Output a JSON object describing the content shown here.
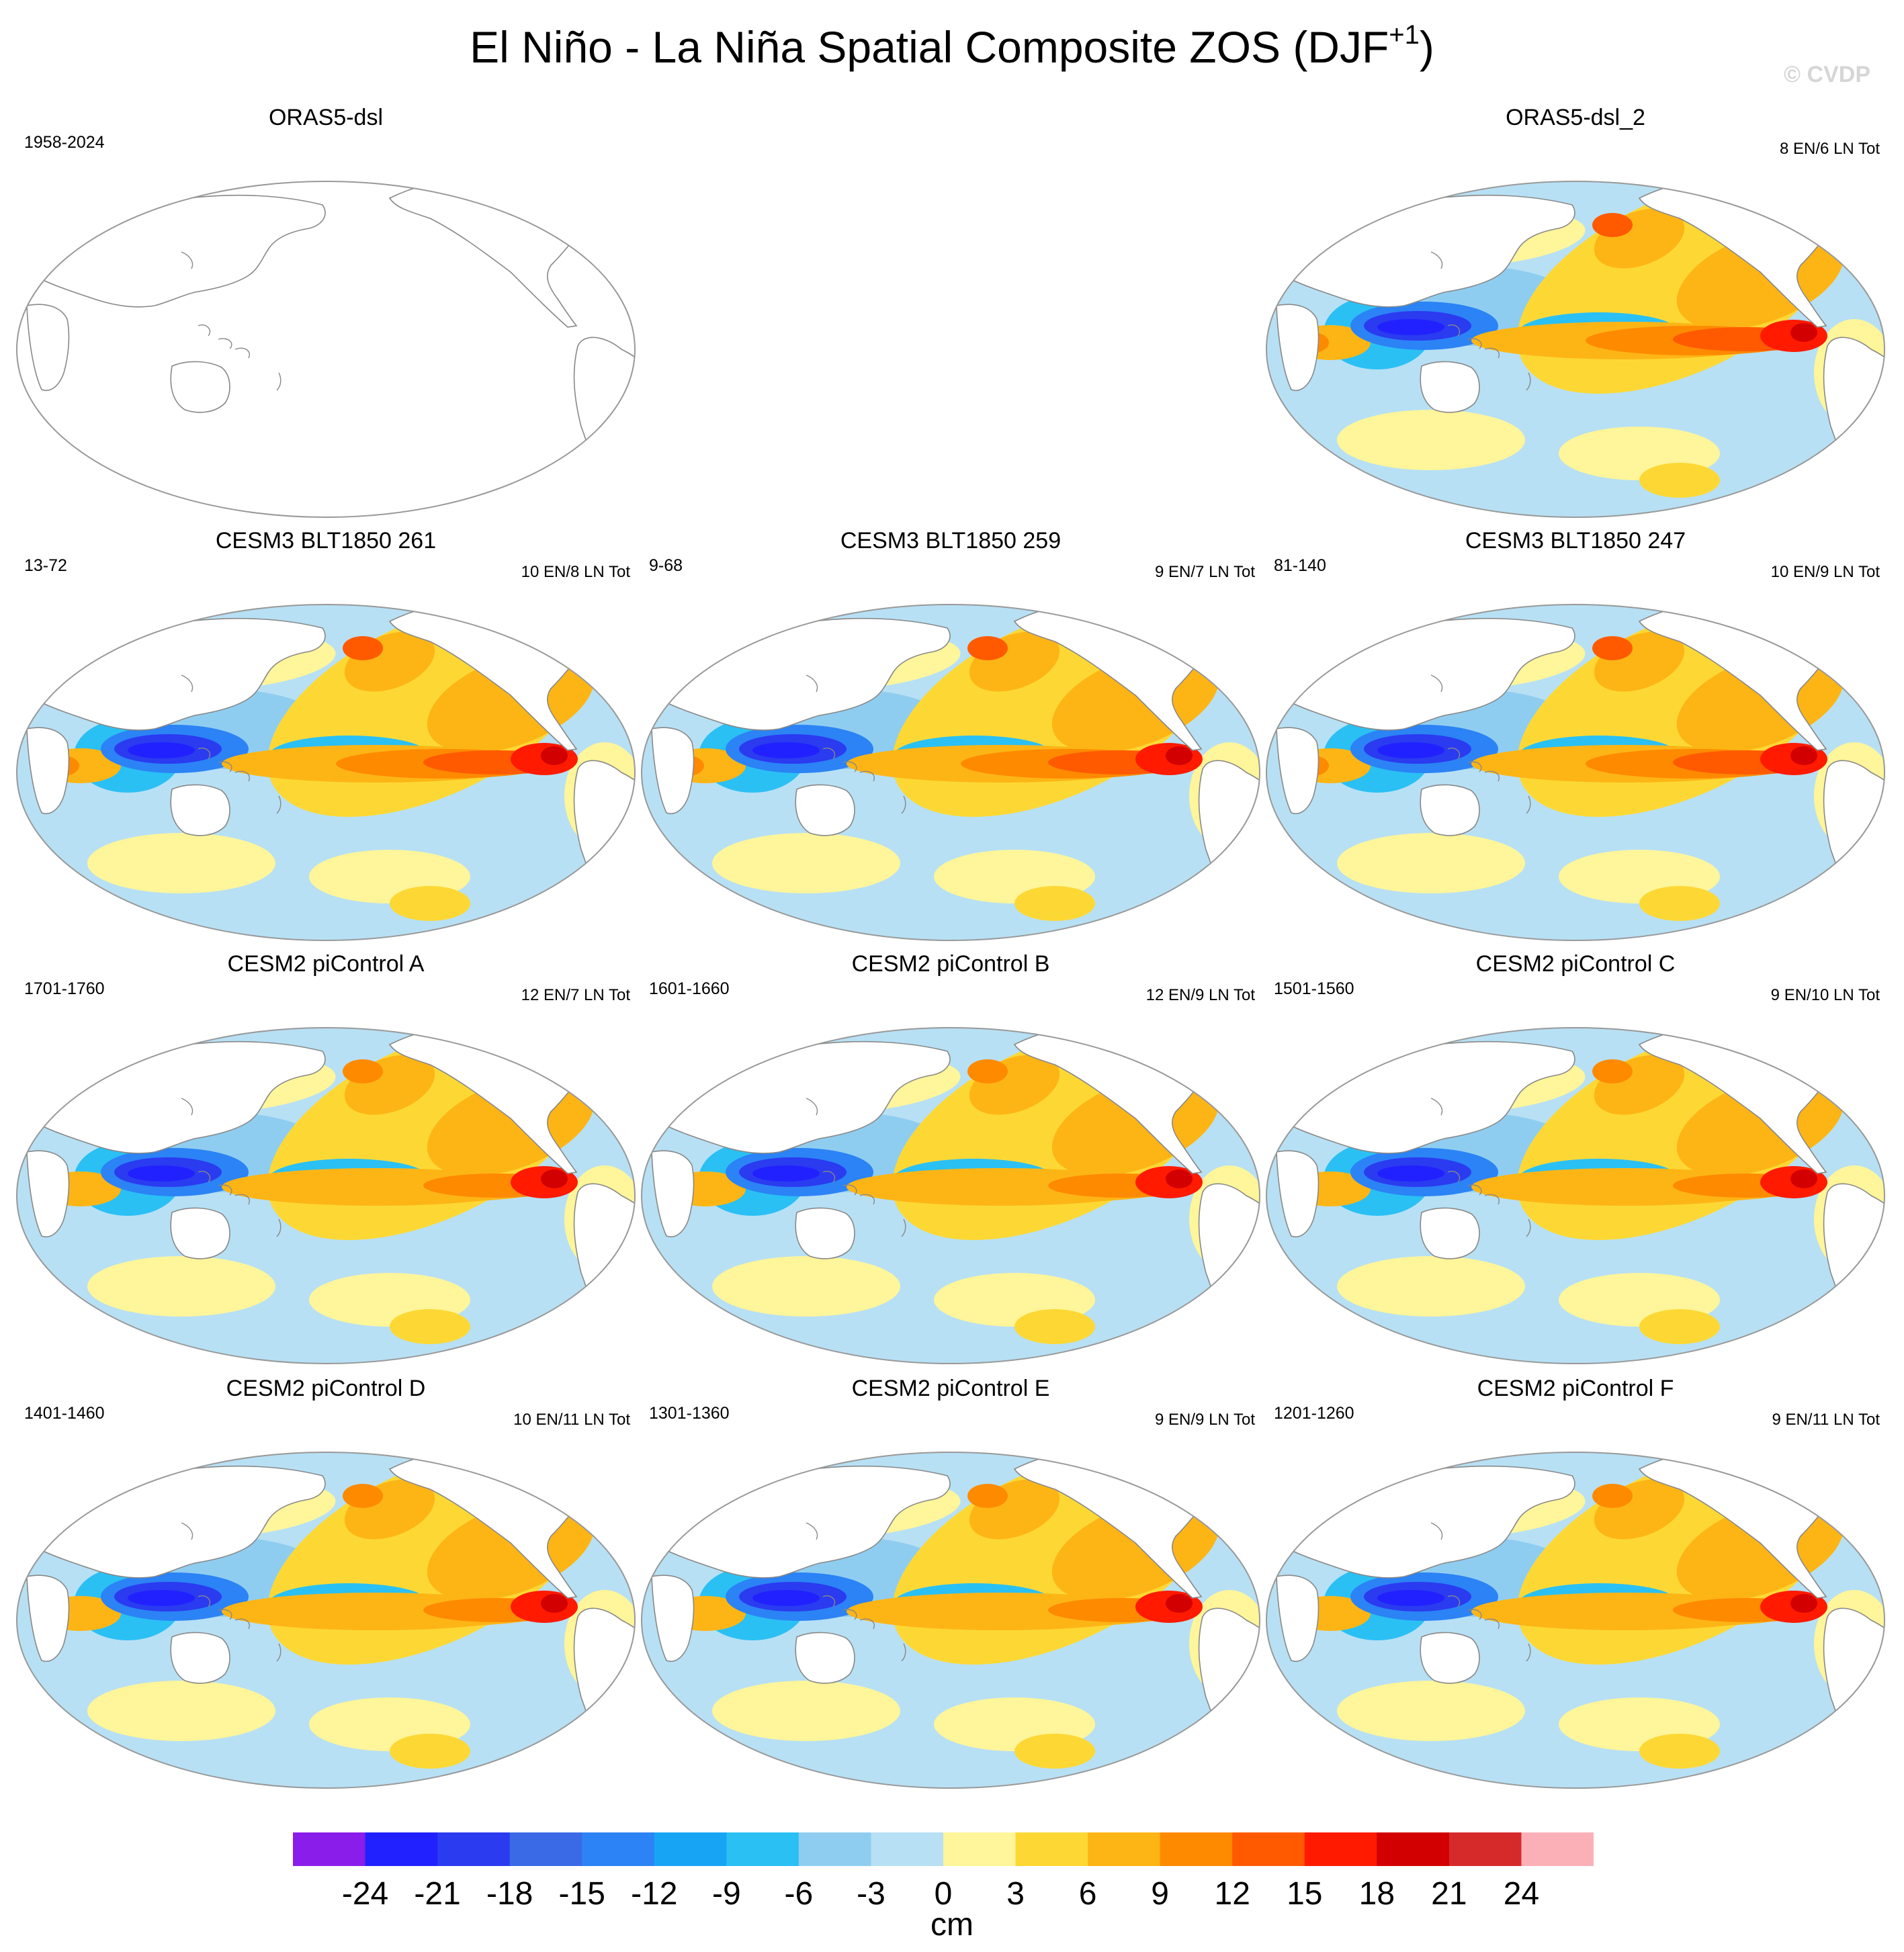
{
  "figure": {
    "title": "El Niño - La Niña Spatial Composite ZOS (DJF",
    "title_superscript": "+1",
    "title_close": ")",
    "credit": "© CVDP"
  },
  "panels": [
    {
      "title": "ORAS5-dsl",
      "years": "1958-2024",
      "count": "",
      "filled": false
    },
    {
      "title": "ORAS5-dsl_2",
      "years": "",
      "count": "8 EN/6 LN Tot",
      "filled": true
    },
    {
      "title": "CESM3 BLT1850 261",
      "years": "13-72",
      "count": "10 EN/8 LN Tot",
      "filled": true
    },
    {
      "title": "CESM3 BLT1850 259",
      "years": "9-68",
      "count": "9 EN/7 LN Tot",
      "filled": true
    },
    {
      "title": "CESM3 BLT1850 247",
      "years": "81-140",
      "count": "10 EN/9 LN Tot",
      "filled": true
    },
    {
      "title": "CESM2 piControl A",
      "years": "1701-1760",
      "count": "12 EN/7 LN Tot",
      "filled": true
    },
    {
      "title": "CESM2 piControl B",
      "years": "1601-1660",
      "count": "12 EN/9 LN Tot",
      "filled": true
    },
    {
      "title": "CESM2 piControl C",
      "years": "1501-1560",
      "count": "9 EN/10 LN Tot",
      "filled": true
    },
    {
      "title": "CESM2 piControl D",
      "years": "1401-1460",
      "count": "10 EN/11 LN Tot",
      "filled": true
    },
    {
      "title": "CESM2 piControl E",
      "years": "1301-1360",
      "count": "9 EN/9 LN Tot",
      "filled": true
    },
    {
      "title": "CESM2 piControl F",
      "years": "1201-1260",
      "count": "9 EN/11 LN Tot",
      "filled": true
    }
  ],
  "colorbar": {
    "unit_label": "cm",
    "tick_labels": [
      "-24",
      "-21",
      "-18",
      "-15",
      "-12",
      "-9",
      "-6",
      "-3",
      "0",
      "3",
      "6",
      "9",
      "12",
      "15",
      "18",
      "21",
      "24"
    ],
    "colors": [
      "#8a1de9",
      "#2121ff",
      "#2a3bf0",
      "#3a6ae6",
      "#2b83f5",
      "#18a4f5",
      "#2ac0f4",
      "#8fcdf0",
      "#b7e0f4",
      "#fff59a",
      "#fdd835",
      "#fdb515",
      "#fe8a00",
      "#ff5a00",
      "#ff1a00",
      "#d20000",
      "#d62a2a",
      "#fbb0b8"
    ]
  },
  "style": {
    "land": "#ffffff",
    "coast": "#888888",
    "frame": "#999999"
  }
}
